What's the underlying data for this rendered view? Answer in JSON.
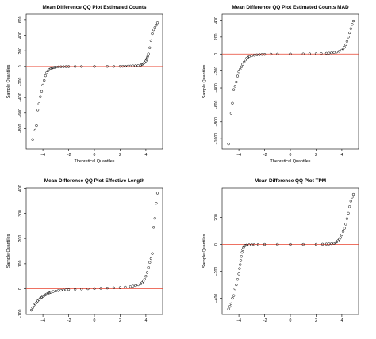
{
  "chart_data": [
    {
      "type": "scatter",
      "title": "Mean Difference QQ Plot Estimated Counts",
      "xlabel": "Theoretical Quantiles",
      "ylabel": "Sample Quantiles",
      "xlim": [
        -5.3,
        5.3
      ],
      "ylim": [
        -1060,
        670
      ],
      "xticks": [
        -4,
        -2,
        0,
        2,
        4
      ],
      "yticks": [
        -800,
        -600,
        -400,
        -200,
        0,
        200,
        400,
        600
      ],
      "xtick_labels": [
        "-4",
        "-2",
        "0",
        "2",
        "4"
      ],
      "ytick_labels": [
        "-800",
        "-600",
        "-400",
        "-200",
        "0",
        "200",
        "400",
        "600"
      ],
      "reference_line": 0,
      "colors": {
        "reference_line": "#e8422e",
        "points": "#000000"
      },
      "x": [
        -4.8,
        -4.6,
        -4.5,
        -4.4,
        -4.3,
        -4.2,
        -4.1,
        -4.0,
        -3.9,
        -3.8,
        -3.7,
        -3.6,
        -3.5,
        -3.4,
        -3.3,
        -3.2,
        -3.1,
        -3.0,
        -2.8,
        -2.6,
        -2.4,
        -2.2,
        -2.0,
        -1.5,
        -1.0,
        0.0,
        1.0,
        1.5,
        2.0,
        2.2,
        2.4,
        2.6,
        2.8,
        3.0,
        3.2,
        3.4,
        3.6,
        3.7,
        3.8,
        3.9,
        4.0,
        4.05,
        4.1,
        4.15,
        4.2,
        4.3,
        4.4,
        4.5,
        4.6,
        4.7,
        4.8,
        4.9
      ],
      "y": [
        -940,
        -820,
        -760,
        -560,
        -480,
        -390,
        -320,
        -240,
        -180,
        -120,
        -80,
        -55,
        -40,
        -30,
        -22,
        -16,
        -12,
        -9,
        -6,
        -4,
        -3,
        -2,
        -1.5,
        -1,
        -0.5,
        0,
        0.5,
        1,
        1.5,
        2,
        3,
        4,
        5,
        7,
        9,
        12,
        18,
        25,
        35,
        50,
        70,
        90,
        110,
        130,
        160,
        240,
        330,
        420,
        470,
        500,
        530,
        560
      ]
    },
    {
      "type": "scatter",
      "title": "Mean Difference QQ Plot Estimated Counts MAD",
      "xlabel": "Theoretical Quantiles",
      "ylabel": "Sample Quantiles",
      "xlim": [
        -5.3,
        5.3
      ],
      "ylim": [
        -1120,
        470
      ],
      "xticks": [
        -4,
        -2,
        0,
        2,
        4
      ],
      "yticks": [
        -1000,
        -800,
        -600,
        -400,
        -200,
        0,
        200,
        400
      ],
      "xtick_labels": [
        "-4",
        "-2",
        "0",
        "2",
        "4"
      ],
      "ytick_labels": [
        "-1000",
        "-800",
        "-600",
        "-400",
        "-200",
        "0",
        "200",
        "400"
      ],
      "reference_line": 0,
      "colors": {
        "reference_line": "#e8422e",
        "points": "#000000"
      },
      "x": [
        -4.8,
        -4.6,
        -4.5,
        -4.4,
        -4.3,
        -4.2,
        -4.1,
        -4.0,
        -3.9,
        -3.8,
        -3.7,
        -3.6,
        -3.5,
        -3.4,
        -3.3,
        -3.2,
        -3.0,
        -2.8,
        -2.6,
        -2.4,
        -2.2,
        -2.0,
        -1.5,
        -1.0,
        0.0,
        1.0,
        1.5,
        2.0,
        2.4,
        2.8,
        3.0,
        3.2,
        3.4,
        3.6,
        3.8,
        4.0,
        4.1,
        4.2,
        4.3,
        4.4,
        4.5,
        4.6,
        4.7,
        4.8,
        4.9
      ],
      "y": [
        -1060,
        -700,
        -580,
        -420,
        -380,
        -330,
        -260,
        -210,
        -180,
        -150,
        -120,
        -95,
        -70,
        -52,
        -40,
        -30,
        -20,
        -14,
        -10,
        -7,
        -5,
        -4,
        -2,
        -1,
        0,
        1,
        2,
        3,
        5,
        8,
        10,
        14,
        18,
        24,
        32,
        45,
        60,
        80,
        110,
        150,
        200,
        250,
        300,
        350,
        390
      ]
    },
    {
      "type": "scatter",
      "title": "Mean Difference QQ Plot Effective Length",
      "xlabel": "",
      "ylabel": "Sample Quantiles",
      "xlim": [
        -5.3,
        5.3
      ],
      "ylim": [
        -102,
        402
      ],
      "xticks": [
        -4,
        -2,
        0,
        2,
        4
      ],
      "yticks": [
        -100,
        0,
        100,
        200,
        300,
        400
      ],
      "xtick_labels": [
        "-4",
        "-2",
        "0",
        "2",
        "4"
      ],
      "ytick_labels": [
        "-100",
        "0",
        "100",
        "200",
        "300",
        "400"
      ],
      "reference_line": 0,
      "colors": {
        "reference_line": "#e8422e",
        "points": "#000000"
      },
      "x": [
        -4.9,
        -4.8,
        -4.7,
        -4.6,
        -4.5,
        -4.4,
        -4.3,
        -4.2,
        -4.1,
        -4.0,
        -3.9,
        -3.8,
        -3.7,
        -3.6,
        -3.5,
        -3.4,
        -3.2,
        -3.0,
        -2.8,
        -2.6,
        -2.4,
        -2.2,
        -2.0,
        -1.5,
        -1.0,
        -0.5,
        0.0,
        0.5,
        1.0,
        1.5,
        2.0,
        2.4,
        2.8,
        3.0,
        3.2,
        3.4,
        3.6,
        3.7,
        3.8,
        3.9,
        4.0,
        4.1,
        4.2,
        4.3,
        4.4,
        4.5,
        4.6,
        4.7,
        4.8,
        4.9
      ],
      "y": [
        -85,
        -75,
        -65,
        -60,
        -55,
        -48,
        -43,
        -38,
        -34,
        -30,
        -27,
        -24,
        -21,
        -18,
        -16,
        -14,
        -11,
        -9,
        -7,
        -6,
        -5,
        -4,
        -3,
        -2,
        -1,
        0,
        1,
        2,
        3,
        4,
        5,
        7,
        9,
        11,
        13,
        16,
        20,
        24,
        30,
        38,
        50,
        65,
        85,
        105,
        120,
        140,
        245,
        280,
        340,
        380
      ]
    },
    {
      "type": "scatter",
      "title": "Mean Difference QQ Plot TPM",
      "xlabel": "",
      "ylabel": "Sample Quantiles",
      "xlim": [
        -5.3,
        5.3
      ],
      "ylim": [
        -520,
        420
      ],
      "xticks": [
        -4,
        -2,
        0,
        2,
        4
      ],
      "yticks": [
        -400,
        -200,
        0,
        200
      ],
      "xtick_labels": [
        "-4",
        "-2",
        "0",
        "2",
        "4"
      ],
      "ytick_labels": [
        "-400",
        "-200",
        "0",
        "200"
      ],
      "reference_line": 0,
      "colors": {
        "reference_line": "#e8422e",
        "points": "#000000"
      },
      "x": [
        -4.8,
        -4.7,
        -4.6,
        -4.5,
        -4.4,
        -4.3,
        -4.2,
        -4.1,
        -4.0,
        -3.95,
        -3.9,
        -3.85,
        -3.8,
        -3.75,
        -3.7,
        -3.65,
        -3.6,
        -3.5,
        -3.4,
        -3.2,
        -3.0,
        -2.8,
        -2.5,
        -2.0,
        -1.0,
        0.0,
        1.0,
        2.0,
        2.5,
        2.8,
        3.0,
        3.2,
        3.4,
        3.5,
        3.6,
        3.7,
        3.8,
        3.9,
        4.0,
        4.1,
        4.2,
        4.3,
        4.4,
        4.5,
        4.6,
        4.7,
        4.8,
        4.9
      ],
      "y": [
        -480,
        -460,
        -440,
        -400,
        -380,
        -330,
        -300,
        -260,
        -220,
        -180,
        -150,
        -120,
        -90,
        -60,
        -40,
        -25,
        -15,
        -8,
        -5,
        -3,
        -2,
        -1,
        -1,
        0,
        0,
        0,
        0,
        0,
        1,
        2,
        3,
        5,
        8,
        12,
        18,
        26,
        36,
        50,
        70,
        95,
        120,
        150,
        190,
        230,
        280,
        320,
        350,
        370
      ]
    }
  ]
}
